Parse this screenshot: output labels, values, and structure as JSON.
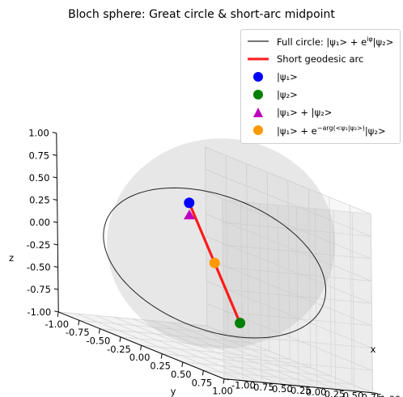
{
  "chart_data": {
    "type": "scatter",
    "title": "Bloch sphere: Great circle & short-arc midpoint",
    "projection": "3d",
    "xlabel": "x",
    "ylabel": "y",
    "zlabel": "z",
    "xlim": [
      -1.0,
      1.0
    ],
    "ylim": [
      -1.0,
      1.0
    ],
    "zlim": [
      -1.0,
      1.0
    ],
    "ticks": [
      "-1.00",
      "-0.75",
      "-0.50",
      "-0.25",
      "0.00",
      "0.25",
      "0.50",
      "0.75",
      "1.00"
    ],
    "view": {
      "elev": 20,
      "azim": -70
    },
    "sphere_color": "#c0c0c0",
    "grid": true,
    "legend_position": "top-right",
    "series": [
      {
        "name": "Full circle: |ψ₁> + e^{iφ}|ψ₂>",
        "kind": "line",
        "color": "#222222",
        "normal": [
          0.6197,
          -0.6197,
          0.4814
        ],
        "radius": 1.0
      },
      {
        "name": "Short geodesic arc",
        "kind": "line",
        "color": "#ff1a1a",
        "points": [
          [
            -0.5,
            0.75,
            -0.43
          ],
          [
            0.5,
            -0.75,
            0.43
          ]
        ]
      },
      {
        "name": "|ψ₁>",
        "kind": "marker",
        "marker": "circle",
        "color": "#0000ff",
        "point": [
          0.5,
          -0.75,
          0.43
        ]
      },
      {
        "name": "|ψ₂>",
        "kind": "marker",
        "marker": "circle",
        "color": "#008000",
        "point": [
          -0.5,
          0.75,
          -0.43
        ]
      },
      {
        "name": "|ψ₁> + |ψ₂>",
        "kind": "marker",
        "marker": "triangle",
        "color": "#bf00bf",
        "point": [
          -0.5,
          0.15,
          0.55
        ]
      },
      {
        "name": "|ψ₁> + e^{-arg(<ψ₁|ψ₂>)}|ψ₂>",
        "kind": "marker",
        "marker": "circle",
        "color": "#ff9900",
        "point": [
          0.0,
          0.0,
          0.0
        ]
      }
    ]
  },
  "legend": {
    "items": [
      {
        "text": "Full circle: |ψ₁> + e",
        "sup": "iφ",
        "tail": "|ψ₂>"
      },
      {
        "text": "Short geodesic arc",
        "sup": "",
        "tail": ""
      },
      {
        "text": "|ψ₁>",
        "sup": "",
        "tail": ""
      },
      {
        "text": "|ψ₂>",
        "sup": "",
        "tail": ""
      },
      {
        "text": "|ψ₁> + |ψ₂>",
        "sup": "",
        "tail": ""
      },
      {
        "text": "|ψ₁> + e",
        "sup": "−arg(<ψ₁|ψ₂>)",
        "tail": "|ψ₂>"
      }
    ]
  }
}
